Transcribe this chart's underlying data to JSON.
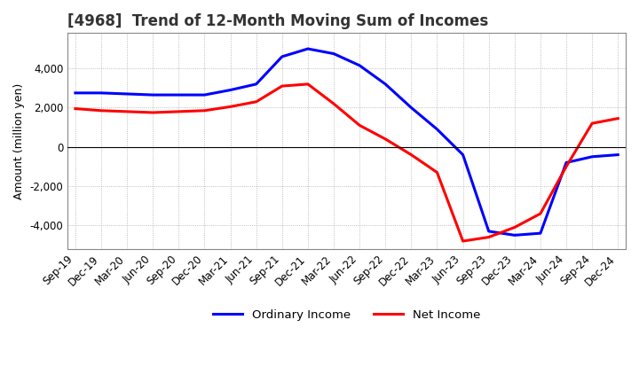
{
  "title": "[4968]  Trend of 12-Month Moving Sum of Incomes",
  "ylabel": "Amount (million yen)",
  "background_color": "#ffffff",
  "plot_bg_color": "#ffffff",
  "grid_color": "#aaaaaa",
  "title_fontsize": 12,
  "label_fontsize": 9,
  "tick_fontsize": 8.5,
  "x_labels": [
    "Sep-19",
    "Dec-19",
    "Mar-20",
    "Jun-20",
    "Sep-20",
    "Dec-20",
    "Mar-21",
    "Jun-21",
    "Sep-21",
    "Dec-21",
    "Mar-22",
    "Jun-22",
    "Sep-22",
    "Dec-22",
    "Mar-23",
    "Jun-23",
    "Sep-23",
    "Dec-23",
    "Mar-24",
    "Jun-24",
    "Sep-24",
    "Dec-24"
  ],
  "ordinary_income": [
    2750,
    2750,
    2700,
    2650,
    2650,
    2650,
    2900,
    3200,
    4600,
    5000,
    4750,
    4150,
    3200,
    2000,
    900,
    -400,
    -4300,
    -4500,
    -4400,
    -800,
    -500,
    -400
  ],
  "net_income": [
    1950,
    1850,
    1800,
    1750,
    1800,
    1850,
    2050,
    2300,
    3100,
    3200,
    2200,
    1100,
    400,
    -400,
    -1300,
    -4800,
    -4600,
    -4100,
    -3400,
    -1000,
    1200,
    1450
  ],
  "ordinary_color": "#0000ff",
  "net_color": "#ff0000",
  "ylim": [
    -5200,
    5800
  ],
  "yticks": [
    -4000,
    -2000,
    0,
    2000,
    4000
  ],
  "line_width": 2.2
}
